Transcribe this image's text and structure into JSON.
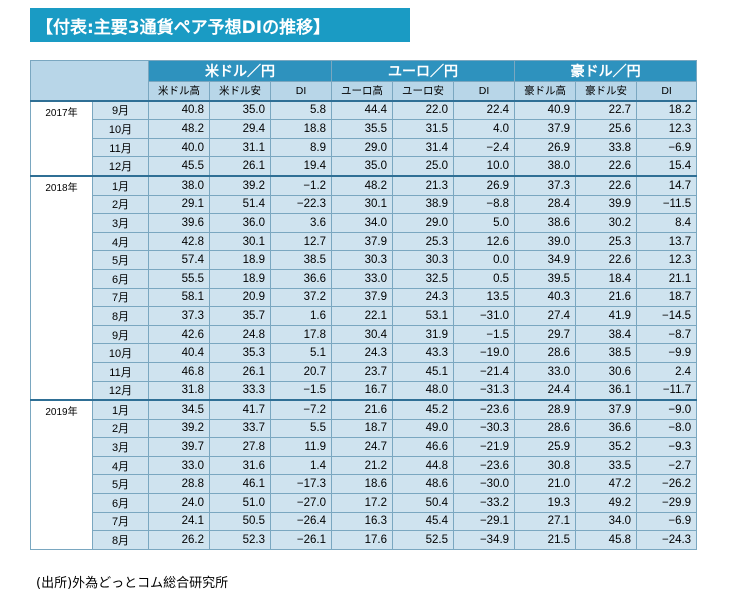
{
  "title": "【付表:主要3通貨ペア予想DIの推移】",
  "source": "(出所)外為どっとコム総合研究所",
  "pairs": [
    {
      "name": "米ドル／円",
      "cols": [
        "米ドル高",
        "米ドル安",
        "DI"
      ]
    },
    {
      "name": "ユーロ／円",
      "cols": [
        "ユーロ高",
        "ユーロ安",
        "DI"
      ]
    },
    {
      "name": "豪ドル／円",
      "cols": [
        "豪ドル高",
        "豪ドル安",
        "DI"
      ]
    }
  ],
  "years": [
    {
      "label": "2017年",
      "rows": [
        {
          "month": "9月",
          "values": [
            "40.8",
            "35.0",
            "5.8",
            "44.4",
            "22.0",
            "22.4",
            "40.9",
            "22.7",
            "18.2"
          ]
        },
        {
          "month": "10月",
          "values": [
            "48.2",
            "29.4",
            "18.8",
            "35.5",
            "31.5",
            "4.0",
            "37.9",
            "25.6",
            "12.3"
          ]
        },
        {
          "month": "11月",
          "values": [
            "40.0",
            "31.1",
            "8.9",
            "29.0",
            "31.4",
            "−2.4",
            "26.9",
            "33.8",
            "−6.9"
          ]
        },
        {
          "month": "12月",
          "values": [
            "45.5",
            "26.1",
            "19.4",
            "35.0",
            "25.0",
            "10.0",
            "38.0",
            "22.6",
            "15.4"
          ]
        }
      ]
    },
    {
      "label": "2018年",
      "rows": [
        {
          "month": "1月",
          "values": [
            "38.0",
            "39.2",
            "−1.2",
            "48.2",
            "21.3",
            "26.9",
            "37.3",
            "22.6",
            "14.7"
          ]
        },
        {
          "month": "2月",
          "values": [
            "29.1",
            "51.4",
            "−22.3",
            "30.1",
            "38.9",
            "−8.8",
            "28.4",
            "39.9",
            "−11.5"
          ]
        },
        {
          "month": "3月",
          "values": [
            "39.6",
            "36.0",
            "3.6",
            "34.0",
            "29.0",
            "5.0",
            "38.6",
            "30.2",
            "8.4"
          ]
        },
        {
          "month": "4月",
          "values": [
            "42.8",
            "30.1",
            "12.7",
            "37.9",
            "25.3",
            "12.6",
            "39.0",
            "25.3",
            "13.7"
          ]
        },
        {
          "month": "5月",
          "values": [
            "57.4",
            "18.9",
            "38.5",
            "30.3",
            "30.3",
            "0.0",
            "34.9",
            "22.6",
            "12.3"
          ]
        },
        {
          "month": "6月",
          "values": [
            "55.5",
            "18.9",
            "36.6",
            "33.0",
            "32.5",
            "0.5",
            "39.5",
            "18.4",
            "21.1"
          ]
        },
        {
          "month": "7月",
          "values": [
            "58.1",
            "20.9",
            "37.2",
            "37.9",
            "24.3",
            "13.5",
            "40.3",
            "21.6",
            "18.7"
          ]
        },
        {
          "month": "8月",
          "values": [
            "37.3",
            "35.7",
            "1.6",
            "22.1",
            "53.1",
            "−31.0",
            "27.4",
            "41.9",
            "−14.5"
          ]
        },
        {
          "month": "9月",
          "values": [
            "42.6",
            "24.8",
            "17.8",
            "30.4",
            "31.9",
            "−1.5",
            "29.7",
            "38.4",
            "−8.7"
          ]
        },
        {
          "month": "10月",
          "values": [
            "40.4",
            "35.3",
            "5.1",
            "24.3",
            "43.3",
            "−19.0",
            "28.6",
            "38.5",
            "−9.9"
          ]
        },
        {
          "month": "11月",
          "values": [
            "46.8",
            "26.1",
            "20.7",
            "23.7",
            "45.1",
            "−21.4",
            "33.0",
            "30.6",
            "2.4"
          ]
        },
        {
          "month": "12月",
          "values": [
            "31.8",
            "33.3",
            "−1.5",
            "16.7",
            "48.0",
            "−31.3",
            "24.4",
            "36.1",
            "−11.7"
          ]
        }
      ]
    },
    {
      "label": "2019年",
      "rows": [
        {
          "month": "1月",
          "values": [
            "34.5",
            "41.7",
            "−7.2",
            "21.6",
            "45.2",
            "−23.6",
            "28.9",
            "37.9",
            "−9.0"
          ]
        },
        {
          "month": "2月",
          "values": [
            "39.2",
            "33.7",
            "5.5",
            "18.7",
            "49.0",
            "−30.3",
            "28.6",
            "36.6",
            "−8.0"
          ]
        },
        {
          "month": "3月",
          "values": [
            "39.7",
            "27.8",
            "11.9",
            "24.7",
            "46.6",
            "−21.9",
            "25.9",
            "35.2",
            "−9.3"
          ]
        },
        {
          "month": "4月",
          "values": [
            "33.0",
            "31.6",
            "1.4",
            "21.2",
            "44.8",
            "−23.6",
            "30.8",
            "33.5",
            "−2.7"
          ]
        },
        {
          "month": "5月",
          "values": [
            "28.8",
            "46.1",
            "−17.3",
            "18.6",
            "48.6",
            "−30.0",
            "21.0",
            "47.2",
            "−26.2"
          ]
        },
        {
          "month": "6月",
          "values": [
            "24.0",
            "51.0",
            "−27.0",
            "17.2",
            "50.4",
            "−33.2",
            "19.3",
            "49.2",
            "−29.9"
          ]
        },
        {
          "month": "7月",
          "values": [
            "24.1",
            "50.5",
            "−26.4",
            "16.3",
            "45.4",
            "−29.1",
            "27.1",
            "34.0",
            "−6.9"
          ]
        },
        {
          "month": "8月",
          "values": [
            "26.2",
            "52.3",
            "−26.1",
            "17.6",
            "52.5",
            "−34.9",
            "21.5",
            "45.8",
            "−24.3"
          ]
        }
      ]
    }
  ]
}
